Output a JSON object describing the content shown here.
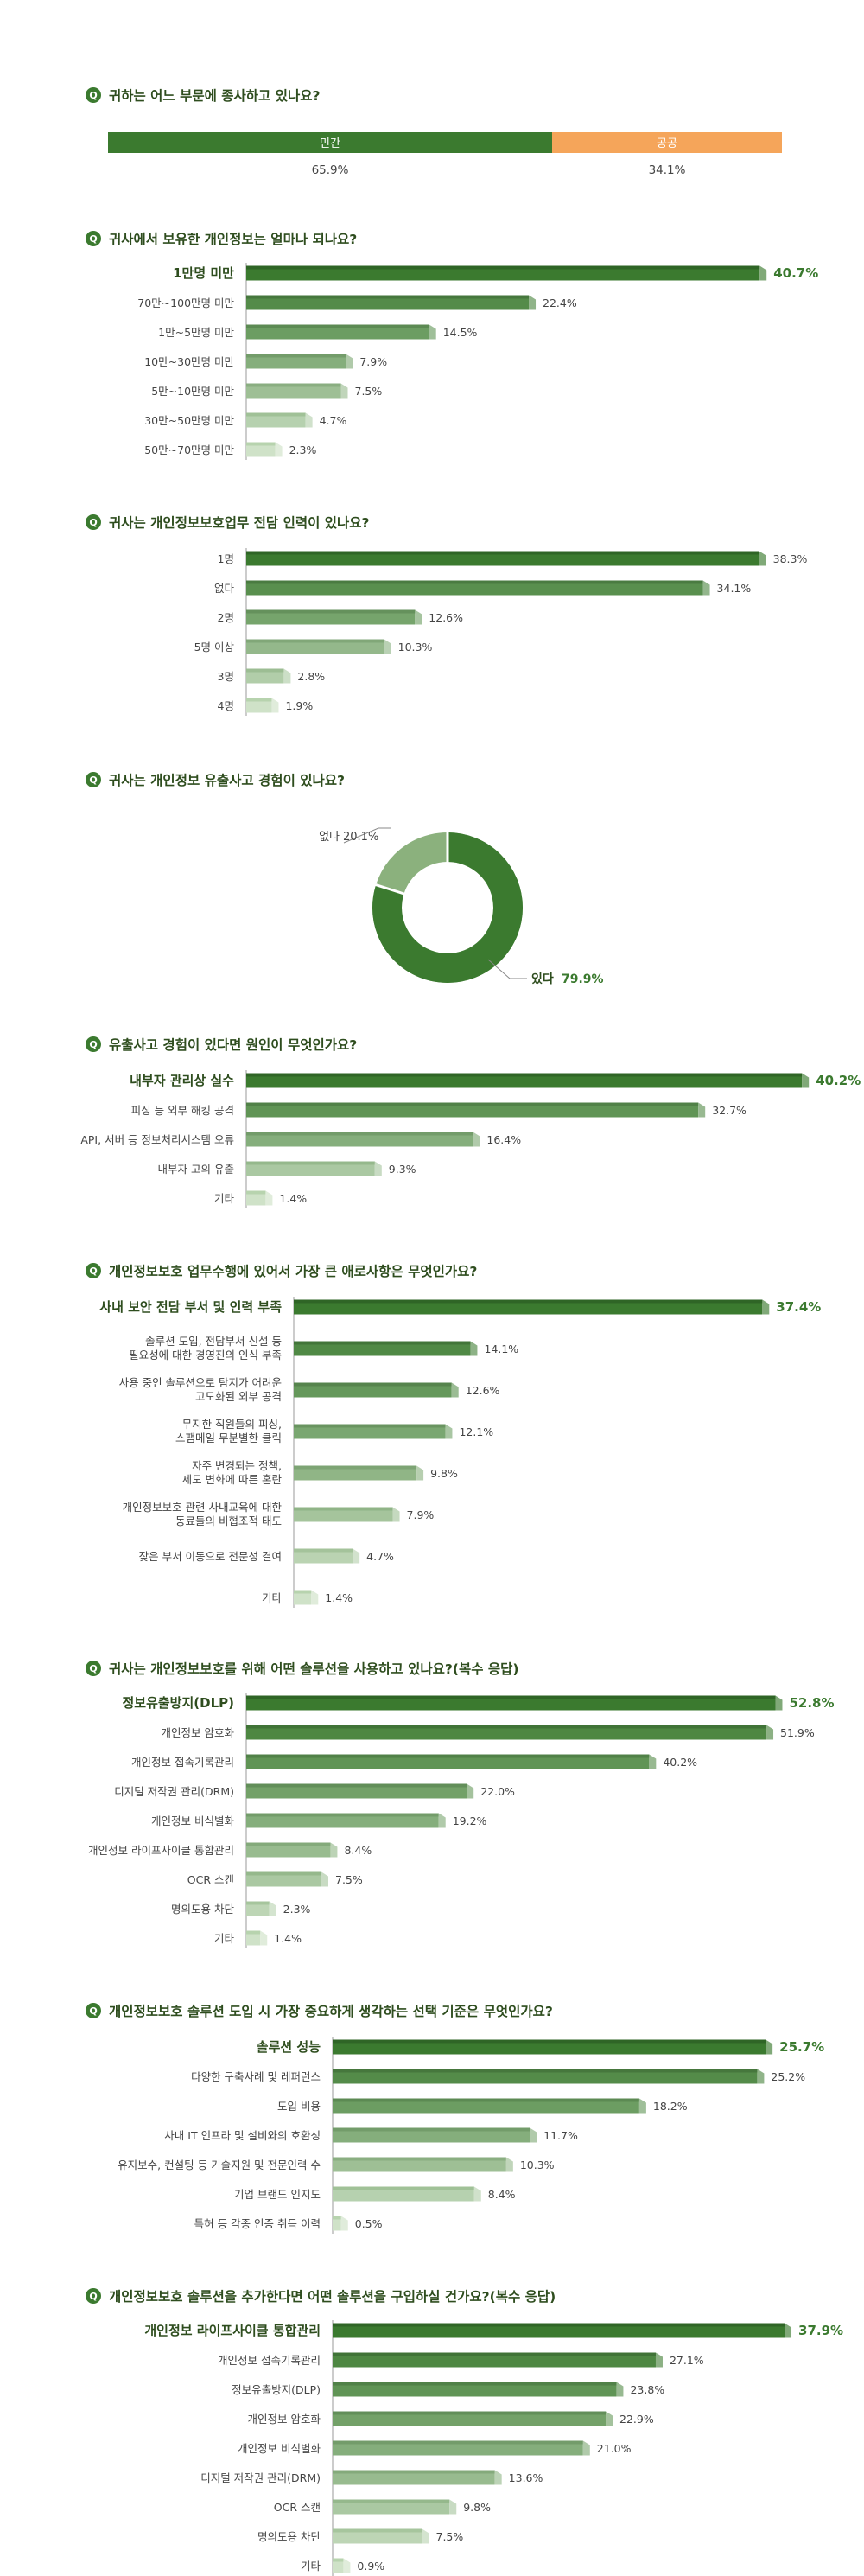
{
  "colors": {
    "dark_green": "#3b7a2f",
    "dark_green_top": "#2f6526",
    "orange": "#f5a55a",
    "title_text": "#2e4d1e",
    "label_text": "#444444",
    "value_text": "#444444",
    "value_highlight": "#3b7a2f",
    "q_badge": "#3b7a2f",
    "shade_top": "#2f6526",
    "shade_side": "#bcd7b5"
  },
  "chart_data": [
    {
      "type": "bar",
      "orientation": "stacked-horizontal",
      "title": "귀하는 어느 부문에 종사하고 있나요?",
      "categories": [
        "민간",
        "공공"
      ],
      "values": [
        65.9,
        34.1
      ],
      "value_labels": [
        "65.9%",
        "34.1%"
      ],
      "colors": [
        "#3b7a2f",
        "#f5a55a"
      ]
    },
    {
      "type": "bar",
      "orientation": "horizontal",
      "title": "귀사에서 보유한 개인정보는 얼마나 되나요?",
      "categories": [
        "1만명 미만",
        "70만~100만명 미만",
        "1만~5만명 미만",
        "10만~30만명 미만",
        "5만~10만명 미만",
        "30만~50만명 미만",
        "50만~70만명 미만"
      ],
      "values": [
        40.7,
        22.4,
        14.5,
        7.9,
        7.5,
        4.7,
        2.3
      ],
      "value_labels": [
        "40.7%",
        "22.4%",
        "14.5%",
        "7.9%",
        "7.5%",
        "4.7%",
        "2.3%"
      ],
      "highlight_first": true
    },
    {
      "type": "bar",
      "orientation": "horizontal",
      "title": "귀사는 개인정보보호업무 전담 인력이 있나요?",
      "categories": [
        "1명",
        "없다",
        "2명",
        "5명 이상",
        "3명",
        "4명"
      ],
      "values": [
        38.3,
        34.1,
        12.6,
        10.3,
        2.8,
        1.9
      ],
      "value_labels": [
        "38.3%",
        "34.1%",
        "12.6%",
        "10.3%",
        "2.8%",
        "1.9%"
      ],
      "highlight_first": false
    },
    {
      "type": "pie",
      "style": "donut",
      "title": "귀사는 개인정보 유출사고 경험이 있나요?",
      "categories": [
        "있다",
        "없다"
      ],
      "values": [
        79.9,
        20.1
      ],
      "value_labels": [
        "79.9%",
        "20.1%"
      ],
      "colors": [
        "#3b7a2f",
        "#8bb17d"
      ]
    },
    {
      "type": "bar",
      "orientation": "horizontal",
      "title": "유출사고 경험이 있다면 원인이 무엇인가요?",
      "categories": [
        "내부자 관리상 실수",
        "피싱 등 외부 해킹 공격",
        "API, 서버 등 정보처리시스템 오류",
        "내부자 고의 유출",
        "기타"
      ],
      "values": [
        40.2,
        32.7,
        16.4,
        9.3,
        1.4
      ],
      "value_labels": [
        "40.2%",
        "32.7%",
        "16.4%",
        "9.3%",
        "1.4%"
      ],
      "highlight_first": true
    },
    {
      "type": "bar",
      "orientation": "horizontal",
      "title": "개인정보보호 업무수행에 있어서 가장 큰 애로사항은 무엇인가요?",
      "categories": [
        [
          "사내 보안 전담 부서 및 인력 부족"
        ],
        [
          "솔루션 도입, 전담부서 신설 등",
          "필요성에 대한 경영진의 인식 부족"
        ],
        [
          "사용 중인 솔루션으로 탐지가 어려운",
          "고도화된 외부 공격"
        ],
        [
          "무지한 직원들의 피싱,",
          "스팸메일 무분별한 클릭"
        ],
        [
          "자주 변경되는 정책,",
          "제도 변화에 따른 혼란"
        ],
        [
          "개인정보보호 관련 사내교육에 대한",
          "동료들의 비협조적 태도"
        ],
        [
          "잦은 부서 이동으로 전문성 결여"
        ],
        [
          "기타"
        ]
      ],
      "values": [
        37.4,
        14.1,
        12.6,
        12.1,
        9.8,
        7.9,
        4.7,
        1.4
      ],
      "value_labels": [
        "37.4%",
        "14.1%",
        "12.6%",
        "12.1%",
        "9.8%",
        "7.9%",
        "4.7%",
        "1.4%"
      ],
      "highlight_first": true
    },
    {
      "type": "bar",
      "orientation": "horizontal",
      "title": "귀사는 개인정보보호를 위해 어떤 솔루션을 사용하고 있나요?(복수 응답)",
      "categories": [
        "정보유출방지(DLP)",
        "개인정보 암호화",
        "개인정보 접속기록관리",
        "디지털 저작권 관리(DRM)",
        "개인정보 비식별화",
        "개인정보 라이프사이클 통합관리",
        "OCR 스캔",
        "명의도용 차단",
        "기타"
      ],
      "values": [
        52.8,
        51.9,
        40.2,
        22.0,
        19.2,
        8.4,
        7.5,
        2.3,
        1.4
      ],
      "value_labels": [
        "52.8%",
        "51.9%",
        "40.2%",
        "22.0%",
        "19.2%",
        "8.4%",
        "7.5%",
        "2.3%",
        "1.4%"
      ],
      "highlight_first": true
    },
    {
      "type": "bar",
      "orientation": "horizontal",
      "title": "개인정보보호 솔루션 도입 시 가장 중요하게 생각하는 선택 기준은 무엇인가요?",
      "categories": [
        "솔루션 성능",
        "다양한 구축사례 및 레퍼런스",
        "도입 비용",
        "사내 IT 인프라 및 설비와의 호환성",
        "유지보수, 컨설팅 등 기술지원 및 전문인력 수",
        "기업 브랜드 인지도",
        "특허 등 각종 인증 취득 이력"
      ],
      "values": [
        25.7,
        25.2,
        18.2,
        11.7,
        10.3,
        8.4,
        0.5
      ],
      "value_labels": [
        "25.7%",
        "25.2%",
        "18.2%",
        "11.7%",
        "10.3%",
        "8.4%",
        "0.5%"
      ],
      "highlight_first": true
    },
    {
      "type": "bar",
      "orientation": "horizontal",
      "title": "개인정보보호 솔루션을 추가한다면 어떤 솔루션을 구입하실 건가요?(복수 응답)",
      "categories": [
        "개인정보 라이프사이클 통합관리",
        "개인정보 접속기록관리",
        "정보유출방지(DLP)",
        "개인정보 암호화",
        "개인정보 비식별화",
        "디지털 저작권 관리(DRM)",
        "OCR 스캔",
        "명의도용 차단",
        "기타"
      ],
      "values": [
        37.9,
        27.1,
        23.8,
        22.9,
        21.0,
        13.6,
        9.8,
        7.5,
        0.9
      ],
      "value_labels": [
        "37.9%",
        "27.1%",
        "23.8%",
        "22.9%",
        "21.0%",
        "13.6%",
        "9.8%",
        "7.5%",
        "0.9%"
      ],
      "highlight_first": true
    }
  ]
}
